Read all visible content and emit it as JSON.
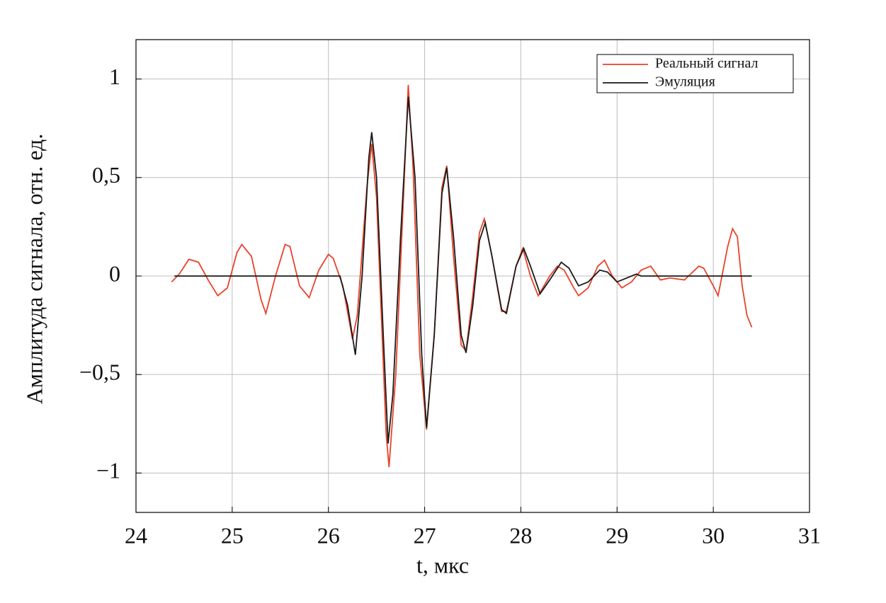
{
  "chart_data": {
    "type": "line",
    "xlabel": "t, мкс",
    "ylabel": "Амплитуда сигнала, отн. ед.",
    "xlim": [
      24,
      31
    ],
    "xticks": [
      24,
      25,
      26,
      27,
      28,
      29,
      30,
      31
    ],
    "ylim": [
      -1.2,
      1.2
    ],
    "yticks": [
      {
        "value": 1,
        "label": "1"
      },
      {
        "value": 0.5,
        "label": "0,5"
      },
      {
        "value": 0,
        "label": "0"
      },
      {
        "value": -0.5,
        "label": "−0,5"
      },
      {
        "value": -1,
        "label": "−1"
      }
    ],
    "grid": true,
    "legend": "upper right",
    "series": [
      {
        "name": "Реальный сигнал",
        "color": "#e8432a",
        "x": [
          24.37,
          24.45,
          24.55,
          24.65,
          24.75,
          24.85,
          24.95,
          25.05,
          25.1,
          25.2,
          25.3,
          25.35,
          25.45,
          25.55,
          25.6,
          25.7,
          25.8,
          25.9,
          26.0,
          26.05,
          26.15,
          26.25,
          26.3,
          26.4,
          26.45,
          26.5,
          26.55,
          26.6,
          26.63,
          26.7,
          26.78,
          26.83,
          26.88,
          26.95,
          27.02,
          27.1,
          27.18,
          27.23,
          27.3,
          27.38,
          27.43,
          27.5,
          27.57,
          27.62,
          27.7,
          27.8,
          27.85,
          27.95,
          28.02,
          28.1,
          28.18,
          28.3,
          28.38,
          28.45,
          28.55,
          28.6,
          28.7,
          28.8,
          28.87,
          28.95,
          29.05,
          29.15,
          29.25,
          29.35,
          29.45,
          29.55,
          29.7,
          29.85,
          29.9,
          30.0,
          30.05,
          30.15,
          30.2,
          30.25,
          30.3,
          30.35,
          30.4
        ],
        "values": [
          -0.03,
          0.01,
          0.085,
          0.07,
          -0.02,
          -0.1,
          -0.06,
          0.12,
          0.16,
          0.1,
          -0.12,
          -0.19,
          0.0,
          0.16,
          0.15,
          -0.05,
          -0.11,
          0.03,
          0.11,
          0.09,
          -0.05,
          -0.32,
          -0.2,
          0.45,
          0.67,
          0.4,
          -0.2,
          -0.8,
          -0.97,
          -0.5,
          0.4,
          0.97,
          0.55,
          -0.4,
          -0.78,
          -0.3,
          0.45,
          0.56,
          0.1,
          -0.35,
          -0.38,
          -0.1,
          0.22,
          0.29,
          0.1,
          -0.18,
          -0.18,
          0.05,
          0.14,
          0.0,
          -0.1,
          0.0,
          0.05,
          0.03,
          -0.06,
          -0.1,
          -0.06,
          0.05,
          0.08,
          0.0,
          -0.06,
          -0.03,
          0.03,
          0.05,
          -0.02,
          -0.01,
          -0.02,
          0.05,
          0.04,
          -0.05,
          -0.1,
          0.15,
          0.24,
          0.2,
          -0.05,
          -0.2,
          -0.26
        ]
      },
      {
        "name": "Эмуляция",
        "color": "#1a1a1a",
        "x": [
          24.4,
          26.12,
          26.2,
          26.28,
          26.35,
          26.42,
          26.45,
          26.5,
          26.57,
          26.62,
          26.67,
          26.75,
          26.83,
          26.9,
          26.97,
          27.02,
          27.1,
          27.18,
          27.23,
          27.3,
          27.38,
          27.43,
          27.5,
          27.57,
          27.63,
          27.7,
          27.8,
          27.85,
          27.95,
          28.03,
          28.1,
          28.2,
          28.3,
          28.42,
          28.5,
          28.6,
          28.7,
          28.82,
          28.9,
          29.0,
          29.1,
          29.2,
          29.25,
          30.4
        ],
        "values": [
          0,
          0,
          -0.15,
          -0.4,
          0.0,
          0.6,
          0.73,
          0.5,
          -0.3,
          -0.85,
          -0.6,
          0.2,
          0.91,
          0.5,
          -0.4,
          -0.77,
          -0.3,
          0.42,
          0.55,
          0.2,
          -0.3,
          -0.39,
          -0.15,
          0.18,
          0.27,
          0.1,
          -0.17,
          -0.19,
          0.05,
          0.14,
          0.05,
          -0.09,
          -0.02,
          0.07,
          0.04,
          -0.05,
          -0.03,
          0.03,
          0.02,
          -0.03,
          -0.01,
          0.01,
          0,
          0
        ]
      }
    ]
  }
}
